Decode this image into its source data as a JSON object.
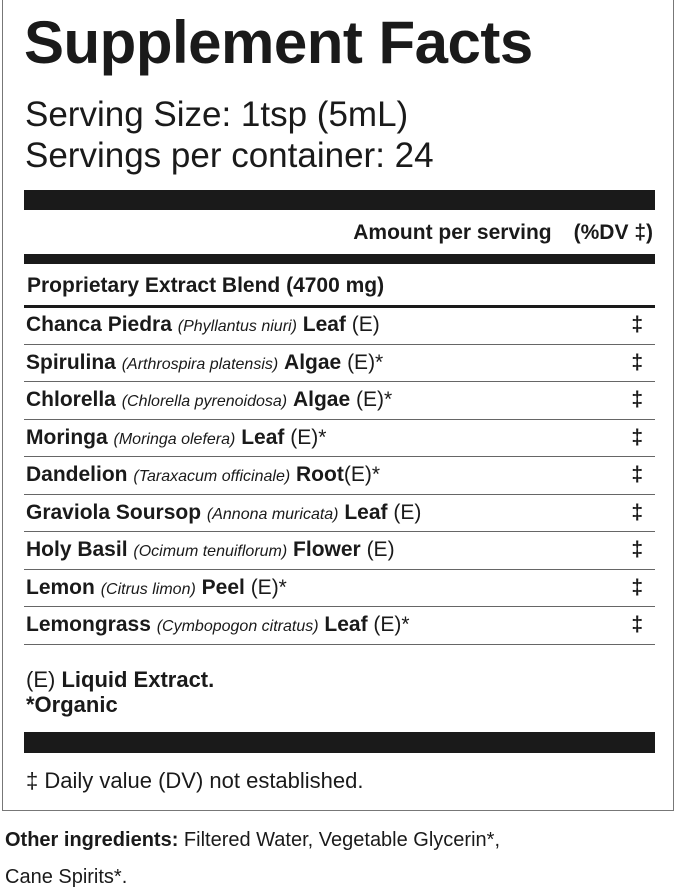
{
  "title": "Supplement Facts",
  "serving_size": "Serving Size: 1tsp (5mL)",
  "servings_per_container": {
    "label": "Servings per container:",
    "value": "24"
  },
  "header": {
    "amount": "Amount per serving",
    "dv": "(%DV ‡)"
  },
  "blend": "Proprietary Extract Blend (4700 mg)",
  "ingredients": [
    {
      "name": "Chanca Piedra",
      "latin": "(Phyllantus niuri)",
      "part": "Leaf",
      "suffix": " (E)",
      "dv": "‡"
    },
    {
      "name": "Spirulina",
      "latin": "(Arthrospira platensis)",
      "part": "Algae",
      "suffix": " (E)*",
      "dv": "‡"
    },
    {
      "name": "Chlorella",
      "latin": "(Chlorella pyrenoidosa)",
      "part": "Algae",
      "suffix": " (E)*",
      "dv": "‡"
    },
    {
      "name": "Moringa",
      "latin": "(Moringa olefera)",
      "part": "Leaf",
      "suffix": " (E)*",
      "dv": "‡"
    },
    {
      "name": "Dandelion",
      "latin": "(Taraxacum officinale)",
      "part": "Root",
      "suffix": "(E)*",
      "dv": "‡"
    },
    {
      "name": "Graviola Soursop",
      "latin": "(Annona muricata)",
      "part": "Leaf",
      "suffix": " (E)",
      "dv": "‡"
    },
    {
      "name": "Holy Basil",
      "latin": "(Ocimum tenuiflorum)",
      "part": "Flower",
      "suffix": " (E)",
      "dv": "‡"
    },
    {
      "name": "Lemon",
      "latin": "(Citrus limon)",
      "part": "Peel",
      "suffix": " (E)*",
      "dv": "‡"
    },
    {
      "name": "Lemongrass",
      "latin": "(Cymbopogon citratus)",
      "part": "Leaf",
      "suffix": " (E)*",
      "dv": "‡"
    }
  ],
  "footnotes": {
    "extract_prefix": "(E)",
    "extract": "Liquid Extract.",
    "organic": "*Organic",
    "dv_note": "‡ Daily value (DV) not established."
  },
  "other": {
    "label": "Other ingredients:",
    "text": "Filtered Water, Vegetable Glycerin*,",
    "text2": "Cane Spirits*."
  }
}
